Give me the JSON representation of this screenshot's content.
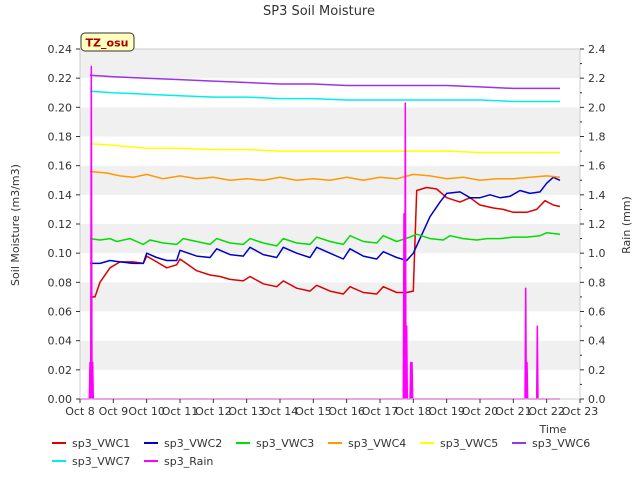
{
  "chart_data": {
    "type": "line",
    "title": "SP3 Soil Moisture",
    "annotation": "TZ_osu",
    "xlabel": "Time",
    "ylabel": "Soil Moisture (m3/m3)",
    "y2label": "Rain (mm)",
    "xlim": [
      8,
      23
    ],
    "ylim": [
      0,
      0.24
    ],
    "y2lim": [
      0,
      2.4
    ],
    "x_ticks": [
      8,
      9,
      10,
      11,
      12,
      13,
      14,
      15,
      16,
      17,
      18,
      19,
      20,
      21,
      22,
      23
    ],
    "x_tick_labels": [
      "Oct 8",
      "Oct 9",
      "Oct 10",
      "Oct 11",
      "Oct 12",
      "Oct 13",
      "Oct 14",
      "Oct 15",
      "Oct 16",
      "Oct 17",
      "Oct 18",
      "Oct 19",
      "Oct 20",
      "Oct 21",
      "Oct 22",
      "Oct 23"
    ],
    "y_ticks": [
      0,
      0.02,
      0.04,
      0.06,
      0.08,
      0.1,
      0.12,
      0.14,
      0.16,
      0.18,
      0.2,
      0.22,
      0.24
    ],
    "y_tick_labels": [
      "0.00",
      "0.02",
      "0.04",
      "0.06",
      "0.08",
      "0.10",
      "0.12",
      "0.14",
      "0.16",
      "0.18",
      "0.20",
      "0.22",
      "0.24"
    ],
    "y2_ticks": [
      0,
      0.2,
      0.4,
      0.6,
      0.8,
      1.0,
      1.2,
      1.4,
      1.6,
      1.8,
      2.0,
      2.2,
      2.4
    ],
    "y2_tick_labels": [
      "0.0",
      "0.2",
      "0.4",
      "0.6",
      "0.8",
      "1.0",
      "1.2",
      "1.4",
      "1.6",
      "1.8",
      "2.0",
      "2.2",
      "2.4"
    ],
    "grid": "horizontal bands",
    "legend_position": "bottom",
    "series": [
      {
        "name": "sp3_VWC1",
        "color": "#dd0000",
        "axis": "left",
        "x": [
          8.3,
          8.45,
          8.6,
          8.9,
          9.2,
          9.6,
          9.9,
          10.0,
          10.3,
          10.6,
          10.9,
          11.0,
          11.5,
          11.9,
          12.2,
          12.5,
          12.9,
          13.1,
          13.5,
          13.9,
          14.1,
          14.5,
          14.9,
          15.1,
          15.5,
          15.9,
          16.1,
          16.5,
          16.9,
          17.1,
          17.5,
          17.8,
          18.0,
          18.1,
          18.4,
          18.7,
          19.0,
          19.4,
          19.7,
          20.0,
          20.4,
          20.7,
          21.0,
          21.4,
          21.7,
          21.95,
          22.2,
          22.4
        ],
        "y": [
          0.07,
          0.07,
          0.08,
          0.09,
          0.094,
          0.094,
          0.093,
          0.098,
          0.094,
          0.09,
          0.092,
          0.096,
          0.088,
          0.085,
          0.084,
          0.082,
          0.081,
          0.084,
          0.079,
          0.077,
          0.081,
          0.076,
          0.074,
          0.078,
          0.074,
          0.072,
          0.077,
          0.073,
          0.072,
          0.077,
          0.073,
          0.073,
          0.074,
          0.143,
          0.145,
          0.144,
          0.138,
          0.135,
          0.138,
          0.133,
          0.131,
          0.13,
          0.128,
          0.128,
          0.13,
          0.136,
          0.133,
          0.132
        ]
      },
      {
        "name": "sp3_VWC2",
        "color": "#0000cc",
        "axis": "left",
        "x": [
          8.3,
          8.6,
          8.9,
          9.2,
          9.6,
          9.9,
          10.0,
          10.3,
          10.6,
          10.9,
          11.0,
          11.5,
          11.9,
          12.1,
          12.5,
          12.9,
          13.1,
          13.5,
          13.9,
          14.1,
          14.5,
          14.9,
          15.1,
          15.5,
          15.9,
          16.1,
          16.5,
          16.9,
          17.1,
          17.5,
          17.8,
          18.0,
          18.2,
          18.5,
          18.8,
          19.0,
          19.4,
          19.7,
          20.0,
          20.3,
          20.6,
          20.9,
          21.2,
          21.5,
          21.8,
          22.0,
          22.2,
          22.4
        ],
        "y": [
          0.093,
          0.093,
          0.095,
          0.094,
          0.093,
          0.093,
          0.1,
          0.097,
          0.095,
          0.095,
          0.102,
          0.098,
          0.097,
          0.103,
          0.099,
          0.098,
          0.104,
          0.099,
          0.097,
          0.104,
          0.1,
          0.097,
          0.104,
          0.1,
          0.096,
          0.103,
          0.098,
          0.096,
          0.101,
          0.097,
          0.095,
          0.1,
          0.11,
          0.125,
          0.135,
          0.141,
          0.142,
          0.138,
          0.138,
          0.14,
          0.138,
          0.139,
          0.143,
          0.141,
          0.142,
          0.148,
          0.152,
          0.15
        ]
      },
      {
        "name": "sp3_VWC3",
        "color": "#00dd00",
        "axis": "left",
        "x": [
          8.3,
          8.6,
          8.9,
          9.1,
          9.5,
          9.9,
          10.1,
          10.5,
          10.9,
          11.1,
          11.5,
          11.9,
          12.1,
          12.5,
          12.9,
          13.1,
          13.5,
          13.9,
          14.1,
          14.5,
          14.9,
          15.1,
          15.5,
          15.9,
          16.1,
          16.5,
          16.9,
          17.1,
          17.5,
          17.9,
          18.1,
          18.5,
          18.9,
          19.1,
          19.5,
          19.9,
          20.2,
          20.6,
          21.0,
          21.4,
          21.8,
          22.0,
          22.4
        ],
        "y": [
          0.11,
          0.109,
          0.11,
          0.108,
          0.11,
          0.106,
          0.109,
          0.107,
          0.106,
          0.11,
          0.108,
          0.106,
          0.11,
          0.107,
          0.106,
          0.11,
          0.107,
          0.105,
          0.11,
          0.107,
          0.106,
          0.111,
          0.108,
          0.106,
          0.112,
          0.108,
          0.107,
          0.112,
          0.108,
          0.111,
          0.113,
          0.11,
          0.109,
          0.112,
          0.11,
          0.109,
          0.11,
          0.11,
          0.111,
          0.111,
          0.112,
          0.114,
          0.113
        ]
      },
      {
        "name": "sp3_VWC4",
        "color": "#ff9900",
        "axis": "left",
        "x": [
          8.3,
          8.8,
          9.2,
          9.6,
          10.0,
          10.5,
          11.0,
          11.5,
          12.0,
          12.5,
          13.0,
          13.5,
          14.0,
          14.5,
          15.0,
          15.5,
          16.0,
          16.5,
          17.0,
          17.5,
          18.0,
          18.5,
          19.0,
          19.5,
          20.0,
          20.5,
          21.0,
          21.5,
          22.0,
          22.4
        ],
        "y": [
          0.156,
          0.155,
          0.153,
          0.152,
          0.154,
          0.151,
          0.153,
          0.151,
          0.152,
          0.15,
          0.151,
          0.15,
          0.152,
          0.15,
          0.151,
          0.15,
          0.152,
          0.15,
          0.152,
          0.151,
          0.154,
          0.153,
          0.151,
          0.152,
          0.15,
          0.151,
          0.151,
          0.152,
          0.153,
          0.152
        ]
      },
      {
        "name": "sp3_VWC5",
        "color": "#ffff00",
        "axis": "left",
        "x": [
          8.3,
          9.0,
          10.0,
          11.0,
          12.0,
          13.0,
          14.0,
          15.0,
          16.0,
          17.0,
          18.0,
          19.0,
          20.0,
          21.0,
          22.0,
          22.4
        ],
        "y": [
          0.175,
          0.174,
          0.172,
          0.172,
          0.171,
          0.171,
          0.17,
          0.17,
          0.17,
          0.17,
          0.17,
          0.17,
          0.169,
          0.169,
          0.169,
          0.169
        ]
      },
      {
        "name": "sp3_VWC6",
        "color": "#9933ee",
        "axis": "left",
        "x": [
          8.3,
          9.0,
          10.0,
          11.0,
          12.0,
          13.0,
          14.0,
          15.0,
          16.0,
          17.0,
          18.0,
          19.0,
          20.0,
          21.0,
          22.0,
          22.4
        ],
        "y": [
          0.222,
          0.221,
          0.22,
          0.219,
          0.218,
          0.217,
          0.216,
          0.216,
          0.215,
          0.215,
          0.215,
          0.215,
          0.214,
          0.213,
          0.213,
          0.213
        ]
      },
      {
        "name": "sp3_VWC7",
        "color": "#00eeee",
        "axis": "left",
        "x": [
          8.3,
          9.0,
          10.0,
          11.0,
          12.0,
          13.0,
          14.0,
          15.0,
          16.0,
          17.0,
          18.0,
          19.0,
          20.0,
          21.0,
          22.0,
          22.4
        ],
        "y": [
          0.211,
          0.21,
          0.209,
          0.208,
          0.207,
          0.207,
          0.206,
          0.206,
          0.205,
          0.205,
          0.205,
          0.205,
          0.205,
          0.204,
          0.204,
          0.204
        ]
      },
      {
        "name": "sp3_Rain",
        "color": "#ff00ff",
        "axis": "right",
        "x": [
          8.0,
          8.28,
          8.3,
          8.32,
          8.34,
          8.36,
          8.38,
          8.4,
          8.42,
          8.5,
          17.7,
          17.72,
          17.74,
          17.76,
          17.78,
          17.8,
          17.82,
          17.84,
          17.9,
          17.92,
          17.94,
          17.96,
          17.98,
          18.0,
          18.02,
          18.04,
          18.1,
          21.35,
          21.37,
          21.39,
          21.41,
          21.43,
          21.45,
          21.47,
          21.49,
          21.7,
          21.72,
          21.74,
          21.76,
          21.8,
          22.4
        ],
        "y": [
          0.0,
          0.0,
          0.25,
          0.0,
          2.28,
          0.0,
          0.25,
          0.0,
          0.0,
          0.0,
          0.0,
          1.27,
          0.0,
          2.03,
          0.0,
          0.5,
          0.0,
          0.0,
          0.0,
          0.25,
          0.0,
          0.25,
          0.0,
          0.0,
          0.0,
          0.0,
          0.0,
          0.0,
          0.76,
          0.0,
          0.25,
          0.0,
          0.0,
          0.0,
          0.0,
          0.0,
          0.5,
          0.0,
          0.0,
          0.0,
          0.0
        ]
      }
    ]
  }
}
